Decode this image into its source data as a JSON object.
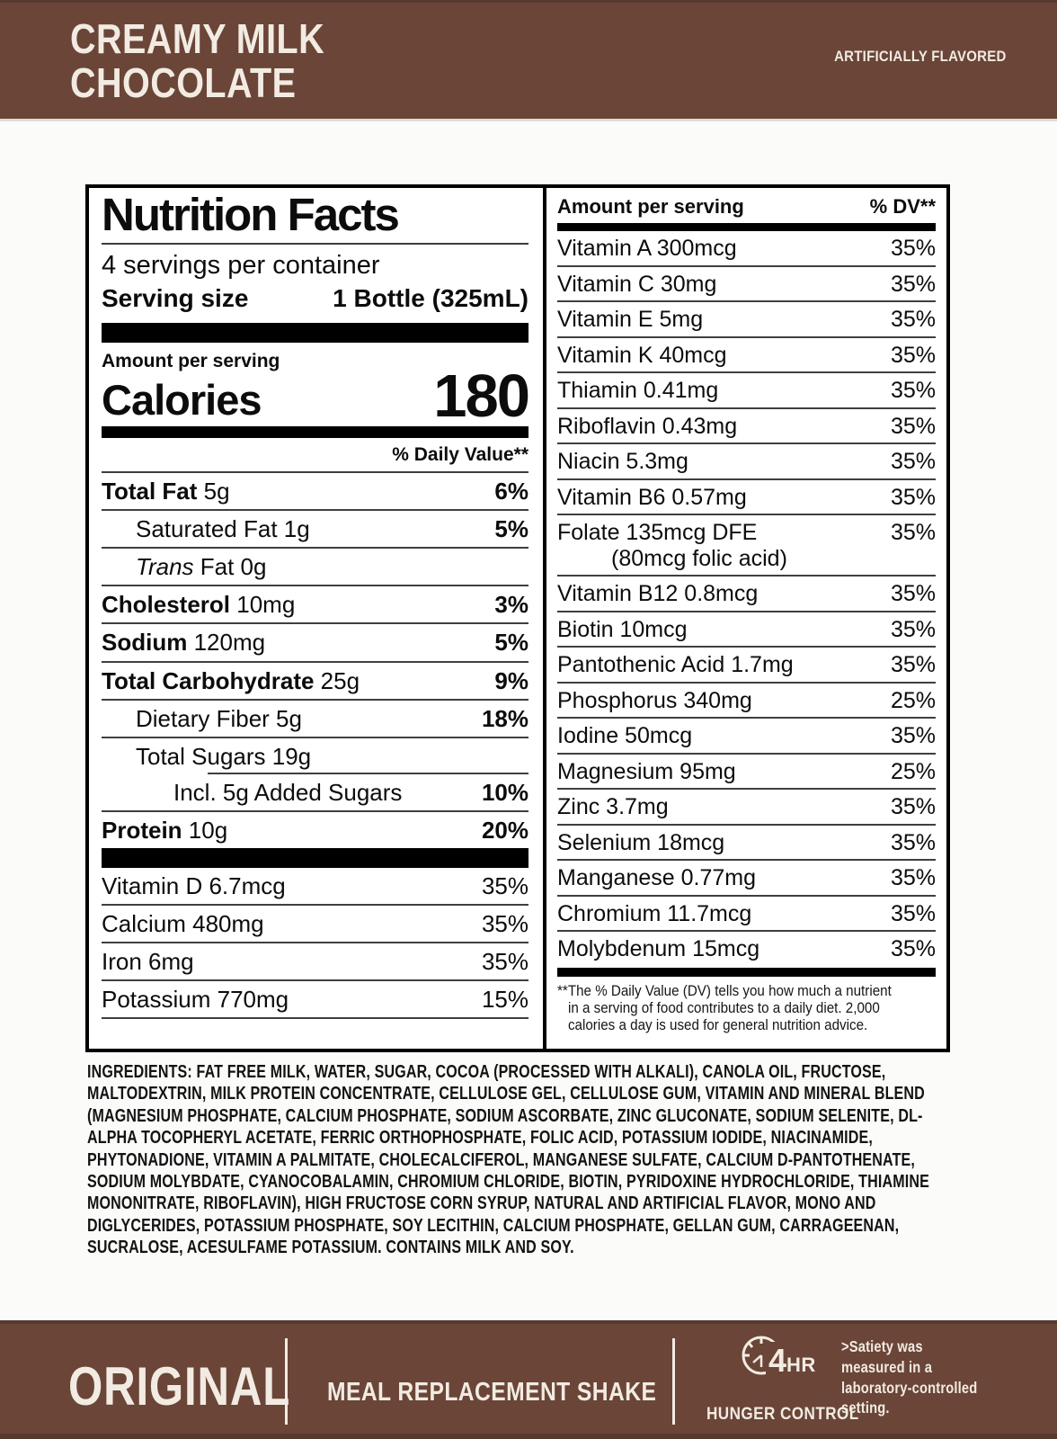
{
  "colors": {
    "brown": "#6a4538",
    "brown-dark": "#573a2e",
    "cream": "#f2ebe2",
    "black": "#000000"
  },
  "header": {
    "title": "CREAMY MILK\nCHOCOLATE",
    "flavored_note": "ARTIFICIALLY FLAVORED"
  },
  "nutrition_left": {
    "title": "Nutrition Facts",
    "servings": "4 servings per container",
    "serving_size_label": "Serving size",
    "serving_size_value": "1 Bottle (325mL)",
    "amount_per_serving_label": "Amount per serving",
    "calories_label": "Calories",
    "calories_value": "180",
    "daily_value_header": "% Daily Value**",
    "rows": [
      {
        "b": "Total Fat",
        "t": " 5g",
        "dv": "6%",
        "dvb": true
      },
      {
        "t": "Saturated Fat 1g",
        "dv": "5%",
        "dvb": true,
        "ind": 1
      },
      {
        "i": "Trans",
        "t": " Fat 0g",
        "dv": "",
        "ind": 1
      },
      {
        "b": "Cholesterol",
        "t": " 10mg",
        "dv": "3%",
        "dvb": true
      },
      {
        "b": "Sodium",
        "t": " 120mg",
        "dv": "5%",
        "dvb": true
      },
      {
        "b": "Total Carbohydrate",
        "t": " 25g",
        "dv": "9%",
        "dvb": true
      },
      {
        "t": "Dietary Fiber 5g",
        "dv": "18%",
        "dvb": true,
        "ind": 1
      },
      {
        "t": "Total Sugars 19g",
        "dv": "",
        "ind": 1,
        "inset": true
      },
      {
        "t": "Incl. 5g Added Sugars",
        "dv": "10%",
        "dvb": true,
        "ind": 2
      },
      {
        "b": "Protein",
        "t": " 10g",
        "dv": "20%",
        "dvb": true,
        "last": true
      }
    ],
    "vitamins": [
      {
        "t": "Vitamin D 6.7mcg",
        "dv": "35%"
      },
      {
        "t": "Calcium 480mg",
        "dv": "35%"
      },
      {
        "t": "Iron 6mg",
        "dv": "35%"
      },
      {
        "t": "Potassium 770mg",
        "dv": "15%"
      }
    ]
  },
  "nutrition_right": {
    "header_amount": "Amount per serving",
    "header_dv": "% DV**",
    "rows": [
      {
        "t": "Vitamin A 300mcg",
        "dv": "35%"
      },
      {
        "t": "Vitamin C 30mg",
        "dv": "35%"
      },
      {
        "t": "Vitamin E 5mg",
        "dv": "35%"
      },
      {
        "t": "Vitamin K 40mcg",
        "dv": "35%"
      },
      {
        "t": "Thiamin 0.41mg",
        "dv": "35%"
      },
      {
        "t": "Riboflavin 0.43mg",
        "dv": "35%"
      },
      {
        "t": "Niacin 5.3mg",
        "dv": "35%"
      },
      {
        "t": "Vitamin B6 0.57mg",
        "dv": "35%"
      },
      {
        "t": "Folate 135mcg DFE",
        "t2": "(80mcg folic acid)",
        "dv": "35%"
      },
      {
        "t": "Vitamin B12 0.8mcg",
        "dv": "35%"
      },
      {
        "t": "Biotin 10mcg",
        "dv": "35%"
      },
      {
        "t": "Pantothenic Acid 1.7mg",
        "dv": "35%"
      },
      {
        "t": "Phosphorus 340mg",
        "dv": "25%"
      },
      {
        "t": "Iodine 50mcg",
        "dv": "35%"
      },
      {
        "t": "Magnesium 95mg",
        "dv": "25%"
      },
      {
        "t": "Zinc 3.7mg",
        "dv": "35%"
      },
      {
        "t": "Selenium 18mcg",
        "dv": "35%"
      },
      {
        "t": "Manganese 0.77mg",
        "dv": "35%"
      },
      {
        "t": "Chromium 11.7mcg",
        "dv": "35%"
      },
      {
        "t": "Molybdenum 15mcg",
        "dv": "35%",
        "last": true
      }
    ],
    "footnote": "**The % Daily Value (DV) tells you how much a nutrient in a serving of food contributes to a daily diet. 2,000 calories a day is used for general nutrition advice."
  },
  "ingredients": {
    "label": "INGREDIENTS:",
    "text": " FAT FREE MILK, WATER, SUGAR, COCOA (PROCESSED WITH ALKALI), CANOLA OIL, FRUCTOSE, MALTODEXTRIN, MILK PROTEIN CONCENTRATE, CELLULOSE GEL, CELLULOSE GUM, VITAMIN AND MINERAL BLEND (MAGNESIUM PHOSPHATE, CALCIUM PHOSPHATE, SODIUM ASCORBATE, ZINC GLUCONATE, SODIUM SELENITE, DL-ALPHA TOCOPHERYL ACETATE, FERRIC ORTHOPHOSPHATE, FOLIC ACID, POTASSIUM IODIDE, NIACINAMIDE, PHYTONADIONE, VITAMIN A PALMITATE, CHOLECALCIFEROL, MANGANESE SULFATE, CALCIUM D-PANTOTHENATE, SODIUM MOLYBDATE, CYANOCOBALAMIN, CHROMIUM CHLORIDE, BIOTIN, PYRIDOXINE HYDROCHLORIDE, THIAMINE MONONITRATE, RIBOFLAVIN), HIGH FRUCTOSE CORN SYRUP, NATURAL AND ARTIFICIAL FLAVOR, MONO AND DIGLYCERIDES, POTASSIUM PHOSPHATE, SOY LECITHIN, CALCIUM PHOSPHATE, GELLAN GUM, CARRAGEENAN, SUCRALOSE, ACESULFAME POTASSIUM. CONTAINS MILK AND SOY."
  },
  "footer": {
    "variant": "ORIGINAL",
    "product": "MEAL REPLACEMENT SHAKE",
    "duration_number": "4",
    "duration_unit": "HR",
    "hunger_label": "HUNGER CONTROL",
    "clock_icon": "hunger-control-clock-icon",
    "satiety_note": ">Satiety was\nmeasured in a\nlaboratory-controlled\nsetting."
  }
}
